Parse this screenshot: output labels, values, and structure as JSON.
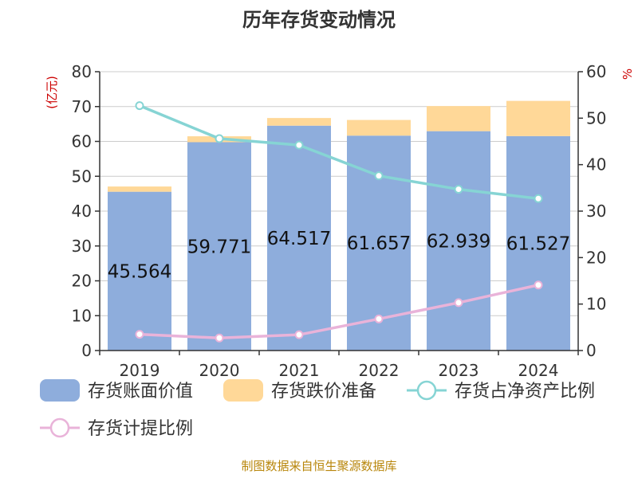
{
  "title": "历年存货变动情况",
  "axis_label_left": "(亿元)",
  "axis_label_right": "%",
  "source": "制图数据来自恒生聚源数据库",
  "chart_data": {
    "type": "bar",
    "title": "历年存货变动情况",
    "categories": [
      "2019",
      "2020",
      "2021",
      "2022",
      "2023",
      "2024"
    ],
    "ylim_left": [
      0,
      80
    ],
    "ylim_right": [
      0,
      60
    ],
    "yticks_left": [
      0,
      10,
      20,
      30,
      40,
      50,
      60,
      70,
      80
    ],
    "yticks_right": [
      0,
      10,
      20,
      30,
      40,
      50,
      60
    ],
    "grid": true,
    "legend_position": "bottom",
    "series": [
      {
        "name": "存货账面价值",
        "kind": "bar",
        "stack": "a",
        "axis": "left",
        "color": "#8eaddc",
        "values": [
          45.564,
          59.771,
          64.517,
          61.657,
          62.939,
          61.527
        ],
        "labels": [
          "45.564",
          "59.771",
          "64.517",
          "61.657",
          "62.939",
          "61.527"
        ]
      },
      {
        "name": "存货跌价准备",
        "kind": "bar",
        "stack": "a",
        "axis": "left",
        "color": "#ffd898",
        "values": [
          1.5,
          1.7,
          2.2,
          4.5,
          7.2,
          10.1
        ]
      },
      {
        "name": "存货占净资产比例",
        "kind": "line",
        "axis": "right",
        "color": "#86d4d4",
        "values": [
          52.7,
          45.6,
          44.2,
          37.6,
          34.7,
          32.7
        ]
      },
      {
        "name": "存货计提比例",
        "kind": "line",
        "axis": "right",
        "color": "#e9b3d9",
        "values": [
          3.5,
          2.7,
          3.4,
          6.8,
          10.3,
          14.1
        ]
      }
    ]
  }
}
